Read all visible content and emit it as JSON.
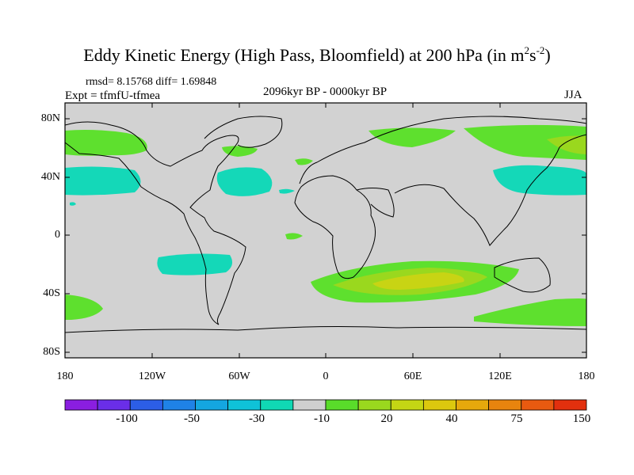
{
  "title": {
    "main": "Eddy Kinetic Energy (High Pass, Bloomfield) at 200 hPa (in m",
    "sup1": "2",
    "mid": "s",
    "sup2": "-2",
    "end": ")"
  },
  "stats": "rmsd= 8.15768 diff= 1.69848",
  "experiment": "Expt = tfmfU-tfmea",
  "period": "2096kyr BP - 0000kyr BP",
  "season": "JJA",
  "axes": {
    "y_ticks": [
      "80N",
      "40N",
      "0",
      "40S",
      "80S"
    ],
    "x_ticks": [
      "180",
      "120W",
      "60W",
      "0",
      "60E",
      "120E",
      "180"
    ]
  },
  "colorbar": {
    "colors": [
      "#8a1ee0",
      "#6a2ee8",
      "#2c5ee6",
      "#1f82e6",
      "#14a6e0",
      "#0fc2d8",
      "#10d8b4",
      "#cfcfcf",
      "#59dc2a",
      "#9ad81e",
      "#c4d614",
      "#dcc80e",
      "#e6a80c",
      "#e8840e",
      "#e85a10",
      "#e2300e"
    ],
    "labels": [
      "-100",
      "-50",
      "-30",
      "-10",
      "20",
      "40",
      "75",
      "150"
    ]
  },
  "map_colors": {
    "ocean": "#d2d2d2",
    "cyan": "#14d8b8",
    "green": "#5ee02e",
    "lime": "#9ad81e",
    "yellow": "#c8d414"
  }
}
